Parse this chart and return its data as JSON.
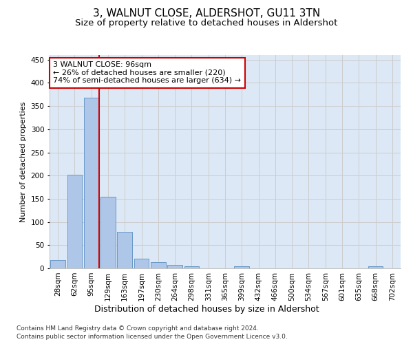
{
  "title": "3, WALNUT CLOSE, ALDERSHOT, GU11 3TN",
  "subtitle": "Size of property relative to detached houses in Aldershot",
  "xlabel": "Distribution of detached houses by size in Aldershot",
  "ylabel": "Number of detached properties",
  "bin_labels": [
    "28sqm",
    "62sqm",
    "95sqm",
    "129sqm",
    "163sqm",
    "197sqm",
    "230sqm",
    "264sqm",
    "298sqm",
    "331sqm",
    "365sqm",
    "399sqm",
    "432sqm",
    "466sqm",
    "500sqm",
    "534sqm",
    "567sqm",
    "601sqm",
    "635sqm",
    "668sqm",
    "702sqm"
  ],
  "bar_values": [
    18,
    202,
    368,
    155,
    78,
    21,
    14,
    8,
    5,
    0,
    0,
    5,
    0,
    0,
    0,
    0,
    0,
    0,
    0,
    5,
    0
  ],
  "bar_color": "#aec6e8",
  "bar_edge_color": "#5a8fc2",
  "subject_line_color": "#cc0000",
  "annotation_text": "3 WALNUT CLOSE: 96sqm\n← 26% of detached houses are smaller (220)\n74% of semi-detached houses are larger (634) →",
  "annotation_box_color": "#ffffff",
  "annotation_box_edge_color": "#cc0000",
  "ylim": [
    0,
    460
  ],
  "yticks": [
    0,
    50,
    100,
    150,
    200,
    250,
    300,
    350,
    400,
    450
  ],
  "grid_color": "#cccccc",
  "bg_color": "#dce8f5",
  "footnote1": "Contains HM Land Registry data © Crown copyright and database right 2024.",
  "footnote2": "Contains public sector information licensed under the Open Government Licence v3.0.",
  "title_fontsize": 11,
  "subtitle_fontsize": 9.5,
  "xlabel_fontsize": 9,
  "ylabel_fontsize": 8,
  "tick_fontsize": 7.5,
  "annotation_fontsize": 8,
  "footnote_fontsize": 6.5
}
